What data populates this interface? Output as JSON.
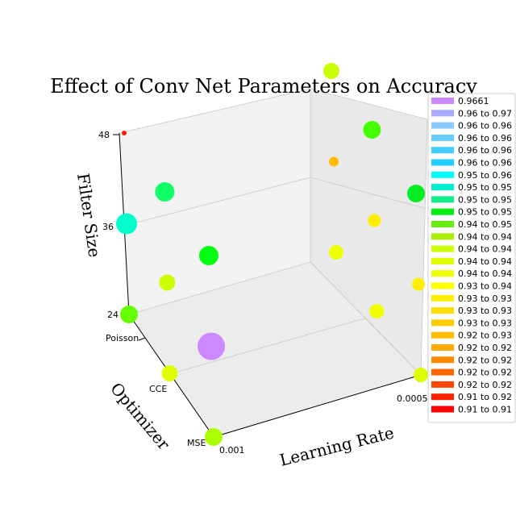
{
  "chart_data": {
    "type": "scatter",
    "title": "Effect of Conv Net Parameters on Accuracy",
    "xlabel": "Learning Rate",
    "ylabel": "Optimizer",
    "zlabel": "Filter Size",
    "x_ticks": [
      "0.001",
      "0.0005"
    ],
    "y_ticks": [
      "MSE",
      "CCE",
      "Poisson"
    ],
    "z_ticks": [
      "24",
      "36",
      "48"
    ],
    "points": [
      {
        "lr": "0.001",
        "optimizer": "MSE",
        "filter": 24,
        "color": "#aaff00",
        "size": 11
      },
      {
        "lr": "0.001",
        "optimizer": "CCE",
        "filter": 24,
        "color": "#ddff00",
        "size": 10
      },
      {
        "lr": "0.001",
        "optimizer": "Poisson",
        "filter": 24,
        "color": "#66ff00",
        "size": 11
      },
      {
        "lr": "0.001",
        "optimizer": "Poisson",
        "filter": 36,
        "color": "#00ffcc",
        "size": 13
      },
      {
        "lr": "0.001",
        "optimizer": "Poisson",
        "filter": 48,
        "color": "#ff1a00",
        "size": 3
      },
      {
        "lr": "0.001",
        "optimizer": "CCE",
        "filter": 48,
        "color": "#11ff66",
        "size": 12
      },
      {
        "lr": "0.001",
        "optimizer": "CCE",
        "filter": 36,
        "color": "#ccff00",
        "size": 10
      },
      {
        "lr": "0.001",
        "optimizer": "MSE",
        "filter": 36,
        "color": "#cc88ff",
        "size": 17
      },
      {
        "lr": "0.001",
        "optimizer": "MSE",
        "filter": 48,
        "color": "#00ff11",
        "size": 12
      },
      {
        "lr": "0.0005",
        "optimizer": "MSE",
        "filter": 24,
        "color": "#ddff00",
        "size": 9
      },
      {
        "lr": "0.0005",
        "optimizer": "CCE",
        "filter": 24,
        "color": "#eeff00",
        "size": 9
      },
      {
        "lr": "0.0005",
        "optimizer": "Poisson",
        "filter": 24,
        "color": "#eeff00",
        "size": 9
      },
      {
        "lr": "0.0005",
        "optimizer": "MSE",
        "filter": 36,
        "color": "#ffee00",
        "size": 8
      },
      {
        "lr": "0.0005",
        "optimizer": "CCE",
        "filter": 36,
        "color": "#ffee00",
        "size": 8
      },
      {
        "lr": "0.0005",
        "optimizer": "Poisson",
        "filter": 36,
        "color": "#ffbb00",
        "size": 6
      },
      {
        "lr": "0.0005",
        "optimizer": "MSE",
        "filter": 48,
        "color": "#00ee22",
        "size": 11
      },
      {
        "lr": "0.0005",
        "optimizer": "CCE",
        "filter": 48,
        "color": "#44ff00",
        "size": 11
      },
      {
        "lr": "0.0005",
        "optimizer": "Poisson",
        "filter": 48,
        "color": "#ccff00",
        "size": 10
      }
    ],
    "legend": {
      "position": "right",
      "entries": [
        {
          "label": "0.9661",
          "color": "#cc88ff"
        },
        {
          "label": "0.96 to 0.97",
          "color": "#aaaaff"
        },
        {
          "label": "0.96 to 0.96",
          "color": "#88ccff"
        },
        {
          "label": "0.96 to 0.96",
          "color": "#66ccff"
        },
        {
          "label": "0.96 to 0.96",
          "color": "#44ccff"
        },
        {
          "label": "0.96 to 0.96",
          "color": "#22ccff"
        },
        {
          "label": "0.95 to 0.96",
          "color": "#00ffff"
        },
        {
          "label": "0.95 to 0.95",
          "color": "#00eecc"
        },
        {
          "label": "0.95 to 0.95",
          "color": "#11ee88"
        },
        {
          "label": "0.95 to 0.95",
          "color": "#00ee11"
        },
        {
          "label": "0.94 to 0.95",
          "color": "#66ee11"
        },
        {
          "label": "0.94 to 0.94",
          "color": "#aaee00"
        },
        {
          "label": "0.94 to 0.94",
          "color": "#ccff00"
        },
        {
          "label": "0.94 to 0.94",
          "color": "#ddff00"
        },
        {
          "label": "0.94 to 0.94",
          "color": "#eeff00"
        },
        {
          "label": "0.93 to 0.94",
          "color": "#ffff00"
        },
        {
          "label": "0.93 to 0.93",
          "color": "#ffee00"
        },
        {
          "label": "0.93 to 0.93",
          "color": "#ffdd00"
        },
        {
          "label": "0.93 to 0.93",
          "color": "#ffcc00"
        },
        {
          "label": "0.92 to 0.93",
          "color": "#ffbb00"
        },
        {
          "label": "0.92 to 0.92",
          "color": "#ffaa00"
        },
        {
          "label": "0.92 to 0.92",
          "color": "#ff8800"
        },
        {
          "label": "0.92 to 0.92",
          "color": "#ff6600"
        },
        {
          "label": "0.92 to 0.92",
          "color": "#ff4400"
        },
        {
          "label": "0.91 to 0.92",
          "color": "#ff2200"
        },
        {
          "label": "0.91 to 0.91",
          "color": "#ff0000"
        }
      ]
    }
  }
}
